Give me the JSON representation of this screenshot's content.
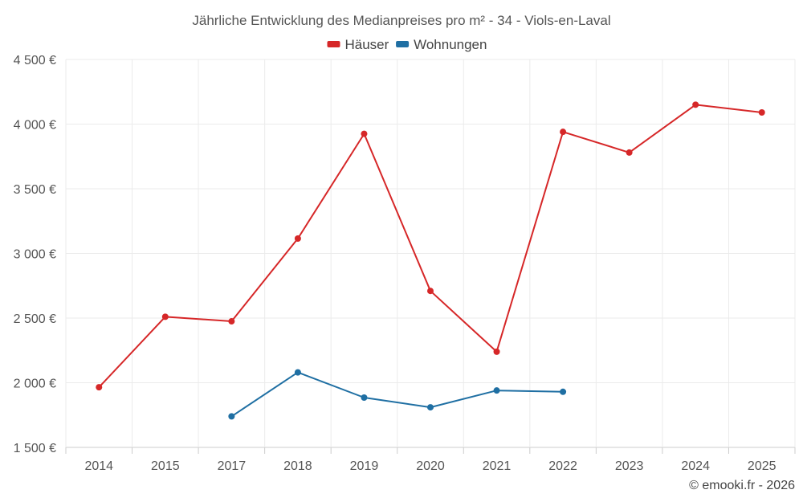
{
  "chart_data": {
    "type": "line",
    "title": "Jährliche Entwicklung des Medianpreises pro m² - 34 - Viols-en-Laval",
    "categories": [
      "2014",
      "2015",
      "2017",
      "2018",
      "2019",
      "2020",
      "2021",
      "2022",
      "2023",
      "2024",
      "2025"
    ],
    "series": [
      {
        "name": "Häuser",
        "color": "#d62728",
        "values": [
          1965,
          2510,
          2475,
          3115,
          3925,
          2710,
          2240,
          3940,
          3780,
          4150,
          4090
        ]
      },
      {
        "name": "Wohnungen",
        "color": "#1f6fa3",
        "values": [
          null,
          null,
          1740,
          2080,
          1885,
          1810,
          1940,
          1930,
          null,
          null,
          null
        ]
      }
    ],
    "y_ticks": [
      1500,
      2000,
      2500,
      3000,
      3500,
      4000,
      4500
    ],
    "y_tick_labels": [
      "1 500 €",
      "2 000 €",
      "2 500 €",
      "3 000 €",
      "3 500 €",
      "4 000 €",
      "4 500 €"
    ],
    "ylim": [
      1500,
      4500
    ],
    "xlabel": "",
    "ylabel": "",
    "legend_position": "top-center",
    "grid": true
  },
  "credit": "© emooki.fr - 2026"
}
